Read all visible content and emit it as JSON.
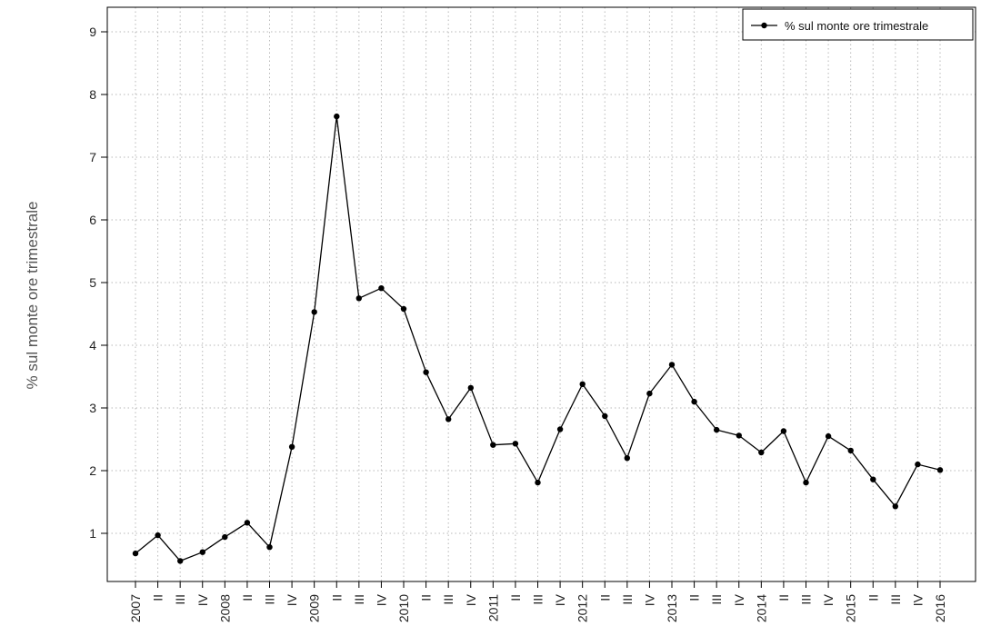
{
  "chart_data": {
    "type": "line",
    "ylabel": "% sul monte ore trimestrale",
    "yticks": [
      1,
      2,
      3,
      4,
      5,
      6,
      7,
      8,
      9
    ],
    "ylim": [
      0.2,
      9.5
    ],
    "grid": true,
    "legend_position": "top-right",
    "categories": [
      "2007",
      "II",
      "III",
      "IV",
      "2008",
      "II",
      "III",
      "IV",
      "2009",
      "II",
      "III",
      "IV",
      "2010",
      "II",
      "III",
      "IV",
      "2011",
      "II",
      "III",
      "IV",
      "2012",
      "II",
      "III",
      "IV",
      "2013",
      "II",
      "III",
      "IV",
      "2014",
      "II",
      "III",
      "IV",
      "2015",
      "II",
      "III",
      "IV",
      "2016"
    ],
    "series": [
      {
        "name": "% sul monte ore trimestrale",
        "color": "#000000",
        "values": [
          0.68,
          0.97,
          0.56,
          0.7,
          0.94,
          1.17,
          0.78,
          2.38,
          4.53,
          7.65,
          4.75,
          4.91,
          4.58,
          3.57,
          2.82,
          3.32,
          2.41,
          2.43,
          1.81,
          2.66,
          3.38,
          2.87,
          2.2,
          3.23,
          3.69,
          3.1,
          2.65,
          2.56,
          2.29,
          2.63,
          1.81,
          2.55,
          2.32,
          1.86,
          1.43,
          2.1,
          2.01
        ]
      }
    ]
  }
}
